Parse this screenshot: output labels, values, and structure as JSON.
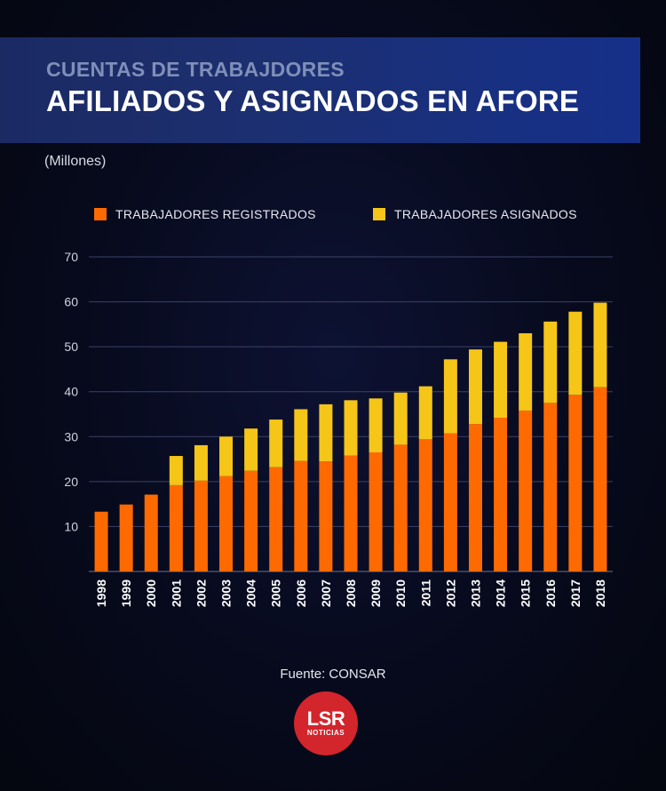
{
  "header": {
    "subtitle": "CUENTAS DE TRABAJDORES",
    "title": "AFILIADOS Y ASIGNADOS EN AFORE"
  },
  "units_label": "(Millones)",
  "source": "Fuente: CONSAR",
  "logo": {
    "main": "LSR",
    "sub": "NOTICIAS"
  },
  "colors": {
    "registrados": "#ff6a00",
    "asignados": "#f5c518",
    "grid": "#3a4266",
    "axis_text": "#cfd3e0"
  },
  "chart_data": {
    "type": "bar",
    "stacked": true,
    "ylabel": "(Millones)",
    "ylim": [
      0,
      70
    ],
    "yticks": [
      10,
      20,
      30,
      40,
      50,
      60,
      70
    ],
    "grid": true,
    "legend": "top",
    "categories": [
      "1998",
      "1999",
      "2000",
      "2001",
      "2002",
      "2003",
      "2004",
      "2005",
      "2006",
      "2007",
      "2008",
      "2009",
      "2010",
      "2011",
      "2012",
      "2013",
      "2014",
      "2015",
      "2016",
      "2017",
      "2018"
    ],
    "series": [
      {
        "name": "TRABAJADORES REGISTRADOS",
        "values": [
          13.3,
          14.9,
          17.1,
          19.2,
          20.2,
          21.2,
          22.4,
          23.2,
          24.6,
          24.5,
          25.8,
          26.5,
          28.2,
          29.4,
          30.7,
          32.8,
          34.2,
          35.8,
          37.5,
          39.3,
          41.0
        ]
      },
      {
        "name": "TRABAJADORES ASIGNADOS",
        "values": [
          0,
          0,
          0,
          6.5,
          7.9,
          8.8,
          9.4,
          10.6,
          11.5,
          12.7,
          12.3,
          12.0,
          11.6,
          11.8,
          16.5,
          16.6,
          16.9,
          17.2,
          18.1,
          18.5,
          18.8
        ]
      }
    ]
  }
}
